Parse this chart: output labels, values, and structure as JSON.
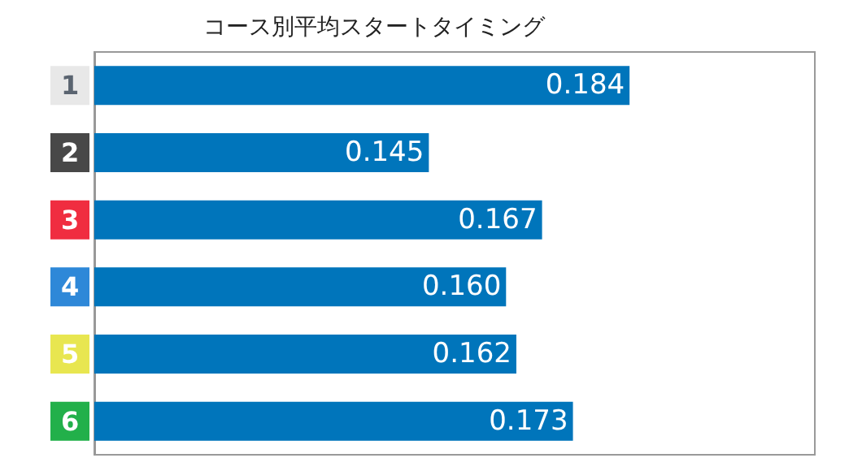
{
  "chart_data": {
    "type": "bar",
    "orientation": "horizontal",
    "title": "コース別平均スタートタイミング",
    "categories": [
      "1",
      "2",
      "3",
      "4",
      "5",
      "6"
    ],
    "values": [
      0.184,
      0.145,
      0.167,
      0.16,
      0.162,
      0.173
    ],
    "value_labels": [
      "0.184",
      "0.145",
      "0.167",
      "0.160",
      "0.162",
      "0.173"
    ],
    "color": "#0075bb",
    "xlim": [
      0.08,
      0.22
    ]
  }
}
